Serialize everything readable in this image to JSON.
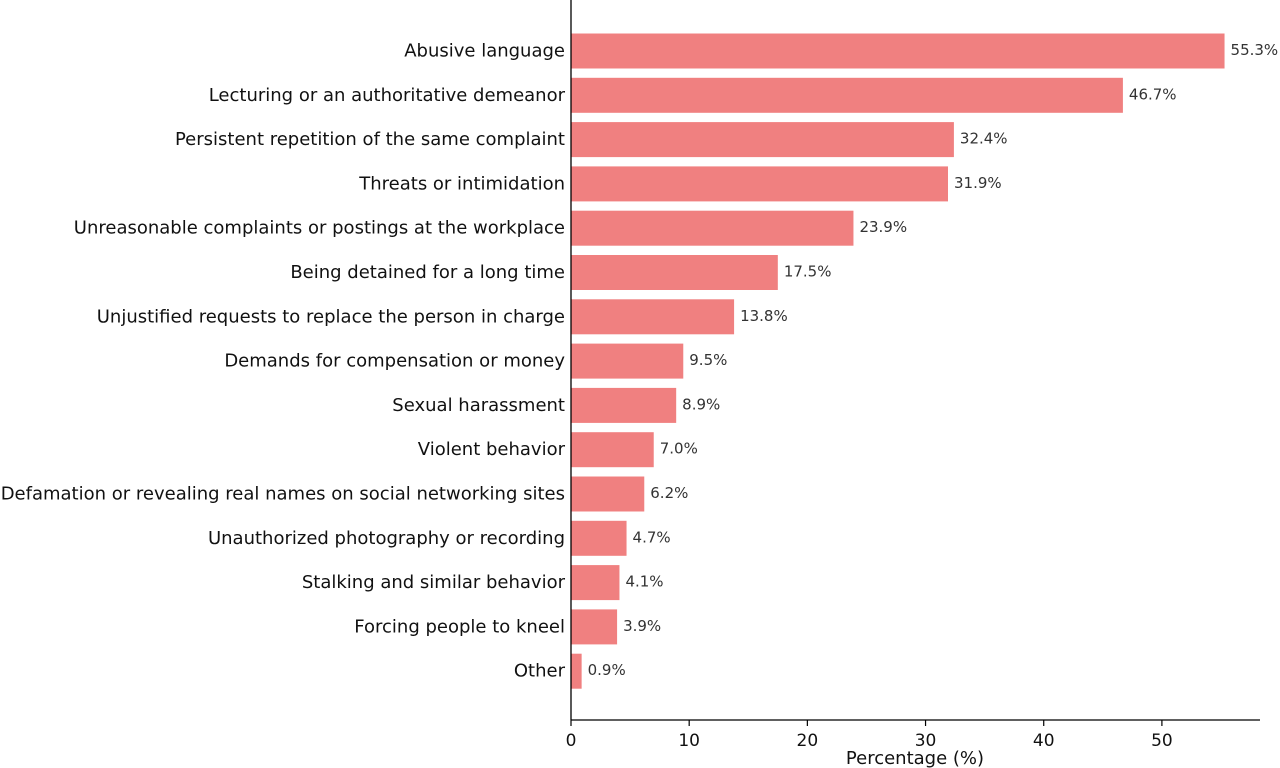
{
  "chart_data": {
    "type": "bar",
    "orientation": "horizontal",
    "title": "",
    "xlabel": "Percentage (%)",
    "ylabel": "",
    "xlim": [
      0,
      58.3
    ],
    "xticks": [
      0,
      10,
      20,
      30,
      40,
      50
    ],
    "grid": false,
    "bar_color": "#F08080",
    "value_format": "percent-1dp",
    "categories": [
      "Abusive language",
      "Lecturing or an authoritative demeanor",
      "Persistent repetition of the same complaint",
      "Threats or intimidation",
      "Unreasonable complaints or postings at the workplace",
      "Being detained for a long time",
      "Unjustified requests to replace the person in charge",
      "Demands for compensation or money",
      "Sexual harassment",
      "Violent behavior",
      "Defamation or revealing real names on social networking sites",
      "Unauthorized photography or recording",
      "Stalking and similar behavior",
      "Forcing people to kneel",
      "Other"
    ],
    "values": [
      55.3,
      46.7,
      32.4,
      31.9,
      23.9,
      17.5,
      13.8,
      9.5,
      8.9,
      7.0,
      6.2,
      4.7,
      4.1,
      3.9,
      0.9
    ],
    "value_labels": [
      "55.3%",
      "46.7%",
      "32.4%",
      "31.9%",
      "23.9%",
      "17.5%",
      "13.8%",
      "9.5%",
      "8.9%",
      "7.0%",
      "6.2%",
      "4.7%",
      "4.1%",
      "3.9%",
      "0.9%"
    ]
  }
}
